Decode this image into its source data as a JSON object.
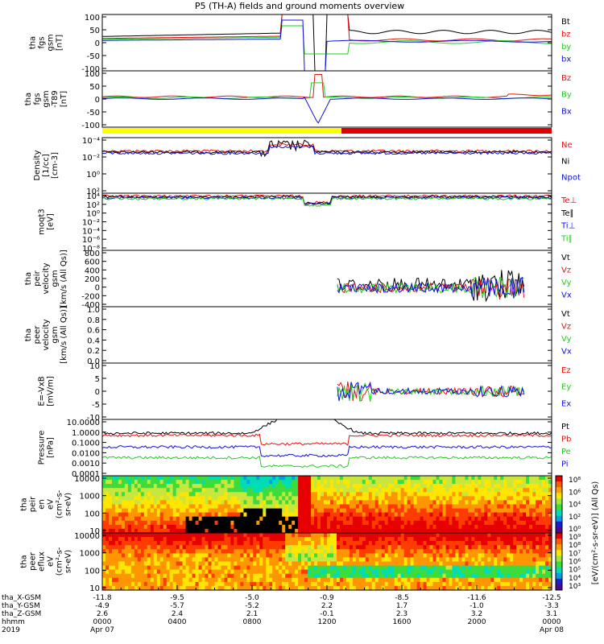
{
  "title": "P5 (TH-A) fields and ground moments overview",
  "colors": {
    "black": "#000000",
    "red": "#e81010",
    "green": "#22cc22",
    "blue": "#1010e0",
    "yellow": "#ffff00",
    "barRed": "#e00000"
  },
  "chart_data": {
    "type": "line",
    "panels": [
      {
        "id": "fgs",
        "ylabel": [
          "tha",
          "fgs",
          "gsm",
          "[nT]"
        ],
        "ticks": [
          "100",
          "50",
          "0",
          "-50",
          "-100"
        ],
        "ylim": [
          -100,
          100
        ],
        "legend": [
          {
            "text": "Bt",
            "color": "black"
          },
          {
            "text": "bz",
            "color": "red"
          },
          {
            "text": "by",
            "color": "green"
          },
          {
            "text": "bx",
            "color": "blue"
          }
        ]
      },
      {
        "id": "fgs_dt",
        "ylabel": [
          "tha",
          "fgs",
          "gsm",
          "-T89",
          "[nT]"
        ],
        "ticks": [
          "100",
          "50",
          "0",
          "-50",
          "-100"
        ],
        "ylim": [
          -125,
          110
        ],
        "legend": [
          {
            "text": "Bz",
            "color": "red"
          },
          {
            "text": "By",
            "color": "green"
          },
          {
            "text": "Bx",
            "color": "blue"
          }
        ]
      },
      {
        "id": "density",
        "ylabel": [
          "Density",
          "[1/cc]",
          "[cm-3]"
        ],
        "ticks": [
          "10⁻⁴",
          "10⁻²",
          "10⁰",
          "10²"
        ],
        "log": true,
        "legend": [
          {
            "text": "Ne",
            "color": "red"
          },
          {
            "text": "Ni",
            "color": "black"
          },
          {
            "text": "Npot",
            "color": "blue"
          }
        ]
      },
      {
        "id": "temp",
        "ylabel": [
          "moqt3",
          "[eV]"
        ],
        "ticks": [
          "10⁴",
          "10²",
          "10⁰",
          "10⁻²",
          "10⁻⁴",
          "10⁻⁶",
          "10⁻⁸"
        ],
        "log": true,
        "legend": [
          {
            "text": "Te⊥",
            "color": "red"
          },
          {
            "text": "Te∥",
            "color": "black"
          },
          {
            "text": "Ti⊥",
            "color": "blue"
          },
          {
            "text": "Ti∥",
            "color": "green"
          }
        ]
      },
      {
        "id": "peir_vel",
        "ylabel": [
          "tha",
          "peir",
          "velocity",
          "gsm",
          "[km/s (All Qs)]"
        ],
        "ticks": [
          "800",
          "600",
          "400",
          "200",
          "0",
          "-200",
          "-400"
        ],
        "ylim": [
          -400,
          800
        ],
        "legend": [
          {
            "text": "Vt",
            "color": "black"
          },
          {
            "text": "Vz",
            "color": "red"
          },
          {
            "text": "Vy",
            "color": "green"
          },
          {
            "text": "Vx",
            "color": "blue"
          }
        ]
      },
      {
        "id": "peer_vel",
        "ylabel": [
          "tha",
          "peer",
          "velocity",
          "gsm",
          "[km/s (All Qs)]"
        ],
        "ticks": [
          "1.0",
          "0.8",
          "0.6",
          "0.4",
          "0.2",
          "0.0"
        ],
        "ylim": [
          0,
          1
        ],
        "legend": [
          {
            "text": "Vt",
            "color": "black"
          },
          {
            "text": "Vz",
            "color": "red"
          },
          {
            "text": "Vy",
            "color": "green"
          },
          {
            "text": "Vx",
            "color": "blue"
          }
        ]
      },
      {
        "id": "efield",
        "ylabel": [
          "E=-VxB",
          "[mV/m]"
        ],
        "ticks": [
          "10",
          "5",
          "0",
          "-5",
          "-10"
        ],
        "ylim": [
          -10,
          10
        ],
        "legend": [
          {
            "text": "Ez",
            "color": "red"
          },
          {
            "text": "Ey",
            "color": "green"
          },
          {
            "text": "Ex",
            "color": "blue"
          }
        ]
      },
      {
        "id": "pressure",
        "ylabel": [
          "Pressure",
          "[nPa]"
        ],
        "ticks": [
          "10.0000",
          "1.0000",
          "0.1000",
          "0.0100",
          "0.0010",
          "0.0001"
        ],
        "log": true,
        "legend": [
          {
            "text": "Pt",
            "color": "black"
          },
          {
            "text": "Pb",
            "color": "red"
          },
          {
            "text": "Pe",
            "color": "green"
          },
          {
            "text": "Pi",
            "color": "blue"
          }
        ]
      },
      {
        "id": "peir_eflux",
        "ylabel": [
          "tha",
          "peir",
          "en",
          "eV",
          "(cm²-s-",
          "sr-eV)"
        ],
        "ticks": [
          "10000",
          "1000",
          "100",
          "10"
        ],
        "log": true
      },
      {
        "id": "peer_eflux",
        "ylabel": [
          "tha",
          "peer",
          "eflux",
          "eV",
          "(cm²-s-",
          "sr-eV)"
        ],
        "ticks": [
          "10000",
          "1000",
          "100",
          "10"
        ],
        "log": true
      }
    ],
    "colorbar1_ticks": [
      "10⁸",
      "10⁶",
      "10⁴",
      "10²",
      "10⁰"
    ],
    "colorbar2_ticks": [
      "10⁹",
      "10⁸",
      "10⁷",
      "10⁶",
      "10⁵",
      "10⁴",
      "10³"
    ],
    "colorbar_label": "[eV/(cm²-s-sr-eV)] (All Qs)",
    "x_axis_rows": [
      {
        "label": "tha_X-GSM",
        "values": [
          "-11.8",
          "-9.5",
          "-5.0",
          "-0.9",
          "-8.5",
          "-11.6",
          "-12.5"
        ]
      },
      {
        "label": "tha_Y-GSM",
        "values": [
          "-4.9",
          "-5.7",
          "-5.2",
          "2.2",
          "1.7",
          "-1.0",
          "-3.3"
        ]
      },
      {
        "label": "tha_Z-GSM",
        "values": [
          "2.6",
          "2.4",
          "2.1",
          "-0.1",
          "2.3",
          "3.2",
          "3.1"
        ]
      },
      {
        "label": "hhmm",
        "values": [
          "0000",
          "0400",
          "0800",
          "1200",
          "1600",
          "2000",
          "0000"
        ]
      },
      {
        "label": "2019",
        "values": [
          "Apr 07",
          "",
          "",
          "",
          "",
          "",
          "Apr 08"
        ]
      }
    ]
  }
}
